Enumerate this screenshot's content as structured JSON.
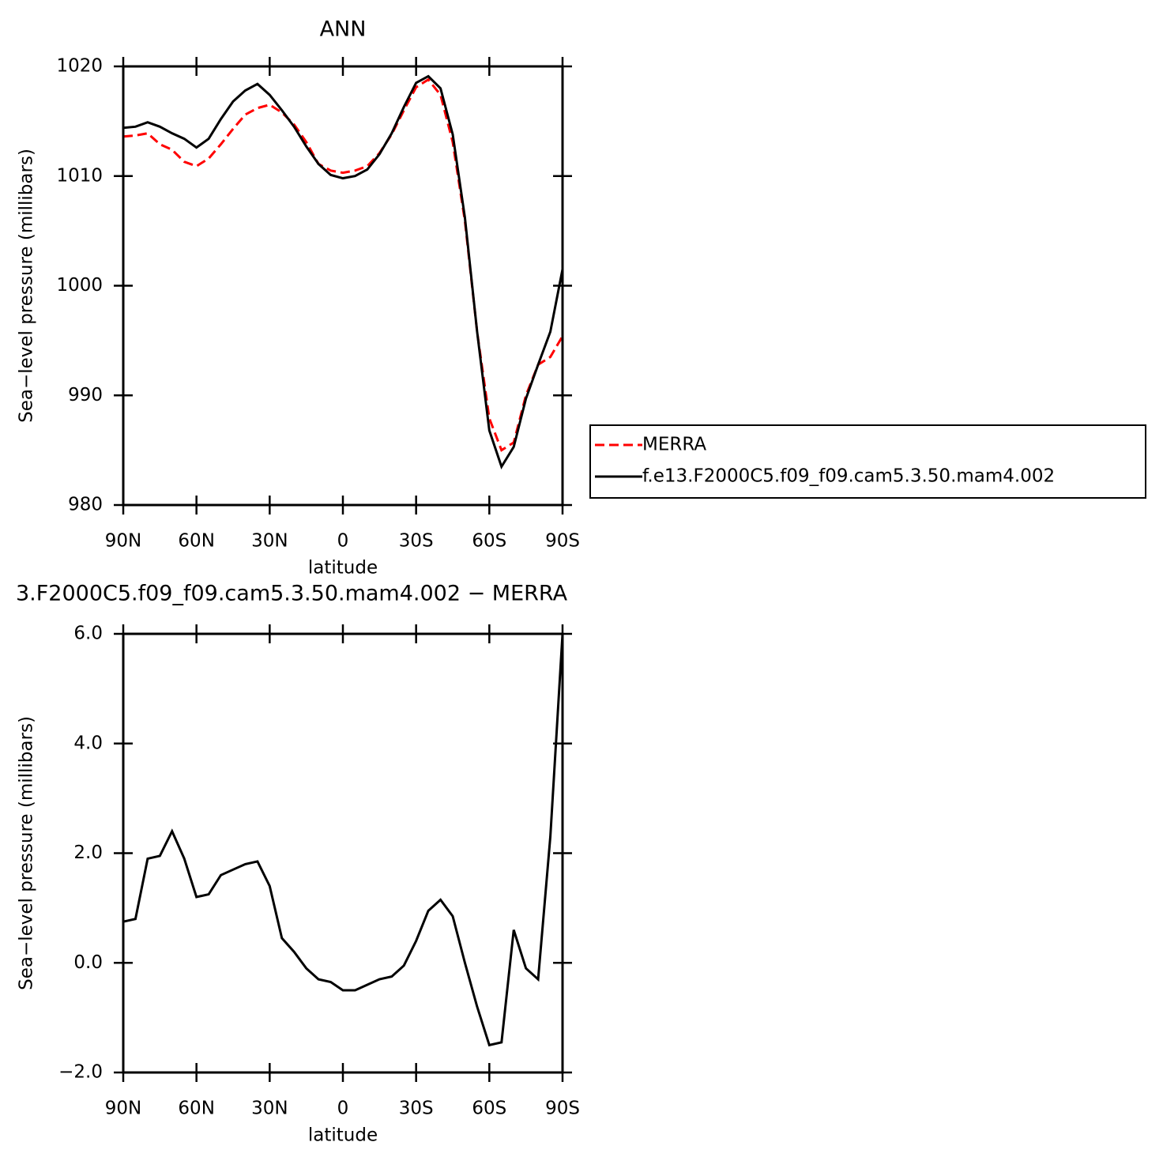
{
  "chart_data": [
    {
      "type": "line",
      "title": "ANN",
      "xlabel": "latitude",
      "ylabel": "Sea−level pressure (millibars)",
      "x": [
        90,
        85,
        80,
        75,
        70,
        65,
        60,
        55,
        50,
        45,
        40,
        35,
        30,
        25,
        20,
        15,
        10,
        5,
        0,
        -5,
        -10,
        -15,
        -20,
        -25,
        -30,
        -35,
        -40,
        -45,
        -50,
        -55,
        -60,
        -65,
        -70,
        -75,
        -80,
        -85,
        -90
      ],
      "series": [
        {
          "name": "MERRA",
          "color": "#ff0000",
          "dashed": true,
          "values": [
            1013.6,
            1013.7,
            1013.9,
            1012.9,
            1012.4,
            1011.3,
            1010.9,
            1011.6,
            1012.9,
            1014.3,
            1015.6,
            1016.2,
            1016.5,
            1015.8,
            1014.7,
            1013.1,
            1011.1,
            1010.5,
            1010.3,
            1010.5,
            1010.9,
            1012.1,
            1013.8,
            1016.0,
            1018.1,
            1018.8,
            1017.4,
            1013.1,
            1005.9,
            995.8,
            987.9,
            985.0,
            985.7,
            990.0,
            992.8,
            993.5,
            995.4
          ]
        },
        {
          "name": "f.e13.F2000C5.f09_f09.cam5.3.50.mam4.002",
          "color": "#000000",
          "dashed": false,
          "values": [
            1014.4,
            1014.5,
            1014.9,
            1014.5,
            1013.9,
            1013.4,
            1012.6,
            1013.4,
            1015.2,
            1016.8,
            1017.8,
            1018.4,
            1017.4,
            1016.0,
            1014.5,
            1012.7,
            1011.1,
            1010.1,
            1009.8,
            1010.0,
            1010.6,
            1012.0,
            1013.9,
            1016.3,
            1018.5,
            1019.1,
            1018.0,
            1013.8,
            1006.2,
            995.8,
            986.8,
            983.5,
            985.3,
            989.7,
            992.8,
            995.8,
            1001.5
          ]
        }
      ],
      "xlim": [
        90,
        -90
      ],
      "xticks": [
        {
          "value": 90,
          "label": "90N"
        },
        {
          "value": 60,
          "label": "60N"
        },
        {
          "value": 30,
          "label": "30N"
        },
        0,
        {
          "value": -30,
          "label": "30S"
        },
        {
          "value": -60,
          "label": "60S"
        },
        {
          "value": -90,
          "label": "90S"
        }
      ],
      "ylim": [
        980,
        1020
      ],
      "yticks": [
        980,
        990,
        1000,
        1010,
        1020
      ],
      "legend": "right"
    },
    {
      "type": "line",
      "title": "3.F2000C5.f09_f09.cam5.3.50.mam4.002 − MERRA",
      "xlabel": "latitude",
      "ylabel": "Sea−level pressure (millibars)",
      "x": [
        90,
        85,
        80,
        75,
        70,
        65,
        60,
        55,
        50,
        45,
        40,
        35,
        30,
        25,
        20,
        15,
        10,
        5,
        0,
        -5,
        -10,
        -15,
        -20,
        -25,
        -30,
        -35,
        -40,
        -45,
        -50,
        -55,
        -60,
        -65,
        -70,
        -75,
        -80,
        -85,
        -90
      ],
      "series": [
        {
          "color": "#000000",
          "dashed": false,
          "values": [
            0.75,
            0.8,
            1.9,
            1.95,
            2.4,
            1.9,
            1.2,
            1.25,
            1.6,
            1.7,
            1.8,
            1.85,
            1.4,
            0.45,
            0.2,
            -0.1,
            -0.3,
            -0.35,
            -0.5,
            -0.5,
            -0.4,
            -0.3,
            -0.25,
            -0.05,
            0.4,
            0.95,
            1.15,
            0.85,
            0.0,
            -0.8,
            -1.5,
            -1.45,
            0.6,
            -0.1,
            -0.3,
            2.3,
            6.0
          ]
        }
      ],
      "xlim": [
        90,
        -90
      ],
      "xticks": [
        {
          "value": 90,
          "label": "90N"
        },
        {
          "value": 60,
          "label": "60N"
        },
        {
          "value": 30,
          "label": "30N"
        },
        0,
        {
          "value": -30,
          "label": "30S"
        },
        {
          "value": -60,
          "label": "60S"
        },
        {
          "value": -90,
          "label": "90S"
        }
      ],
      "ylim": [
        -2,
        6
      ],
      "yticks": [
        {
          "value": -2,
          "label": "−2.0"
        },
        {
          "value": 0,
          "label": "0.0"
        },
        {
          "value": 2,
          "label": "2.0"
        },
        {
          "value": 4,
          "label": "4.0"
        },
        {
          "value": 6,
          "label": "6.0"
        }
      ]
    }
  ]
}
